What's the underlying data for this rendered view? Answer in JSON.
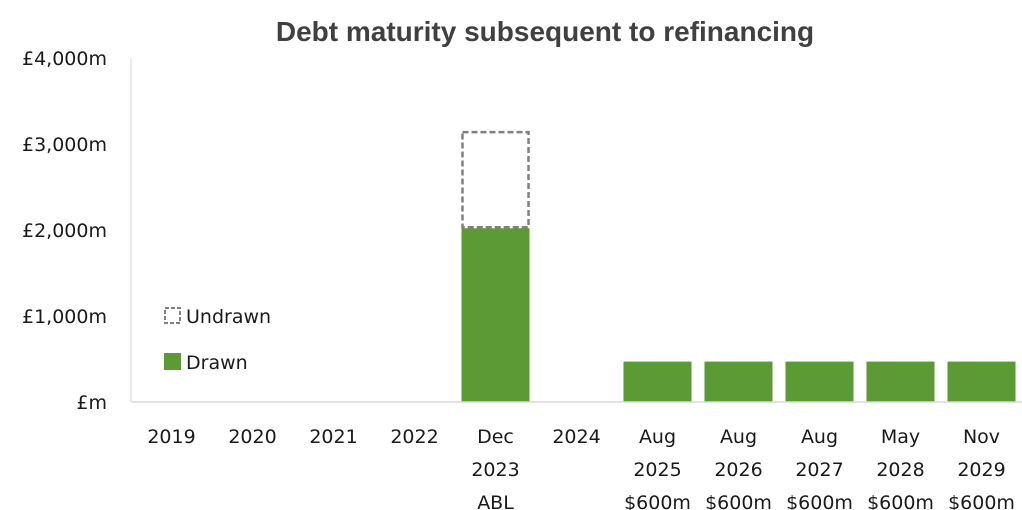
{
  "chart_data": {
    "type": "bar",
    "title": "Debt maturity subsequent to refinancing",
    "xlabel": "",
    "ylabel": "",
    "ylim": [
      0,
      4000
    ],
    "yticks": [
      0,
      1000,
      2000,
      3000,
      4000
    ],
    "ytick_labels": [
      "£m",
      "£1,000m",
      "£2,000m",
      "£3,000m",
      "£4,000m"
    ],
    "categories": [
      [
        "2019"
      ],
      [
        "2020"
      ],
      [
        "2021"
      ],
      [
        "2022"
      ],
      [
        "Dec",
        "2023",
        "ABL"
      ],
      [
        "2024"
      ],
      [
        "Aug",
        "2025",
        "$600m"
      ],
      [
        "Aug",
        "2026",
        "$600m"
      ],
      [
        "Aug",
        "2027",
        "$600m"
      ],
      [
        "May",
        "2028",
        "$600m"
      ],
      [
        "Nov",
        "2029",
        "$600m"
      ]
    ],
    "series": [
      {
        "name": "Drawn",
        "style": "solid",
        "color": "#5b9a35",
        "values": [
          0,
          0,
          0,
          0,
          2020,
          0,
          470,
          470,
          470,
          470,
          470
        ]
      },
      {
        "name": "Undrawn",
        "style": "dashed-outline",
        "color": "#808080",
        "values": [
          0,
          0,
          0,
          0,
          1130,
          0,
          0,
          0,
          0,
          0,
          0
        ]
      }
    ],
    "legend_order": [
      "Undrawn",
      "Drawn"
    ],
    "legend_position": "left",
    "grid": false
  }
}
